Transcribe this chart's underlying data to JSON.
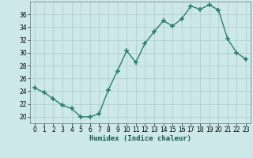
{
  "x": [
    0,
    1,
    2,
    3,
    4,
    5,
    6,
    7,
    8,
    9,
    10,
    11,
    12,
    13,
    14,
    15,
    16,
    17,
    18,
    19,
    20,
    21,
    22,
    23
  ],
  "y": [
    24.5,
    23.8,
    22.8,
    21.8,
    21.3,
    20.0,
    20.0,
    20.5,
    24.2,
    27.2,
    30.3,
    28.5,
    31.5,
    33.3,
    35.0,
    34.2,
    35.3,
    37.3,
    36.8,
    37.5,
    36.7,
    32.2,
    30.0,
    29.0
  ],
  "line_color": "#2e7d6e",
  "marker": "+",
  "marker_size": 4,
  "marker_linewidth": 1.2,
  "background_color": "#cce8e8",
  "grid_color": "#aacccc",
  "xlabel": "Humidex (Indice chaleur)",
  "ylim": [
    19,
    38
  ],
  "xlim": [
    -0.5,
    23.5
  ],
  "yticks": [
    20,
    22,
    24,
    26,
    28,
    30,
    32,
    34,
    36
  ],
  "xtick_labels": [
    "0",
    "1",
    "2",
    "3",
    "4",
    "5",
    "6",
    "7",
    "8",
    "9",
    "1011",
    "1213",
    "1415",
    "1617",
    "1819",
    "2021",
    "2223"
  ],
  "tick_fontsize": 5.5,
  "xlabel_fontsize": 6.5,
  "linewidth": 1.0
}
